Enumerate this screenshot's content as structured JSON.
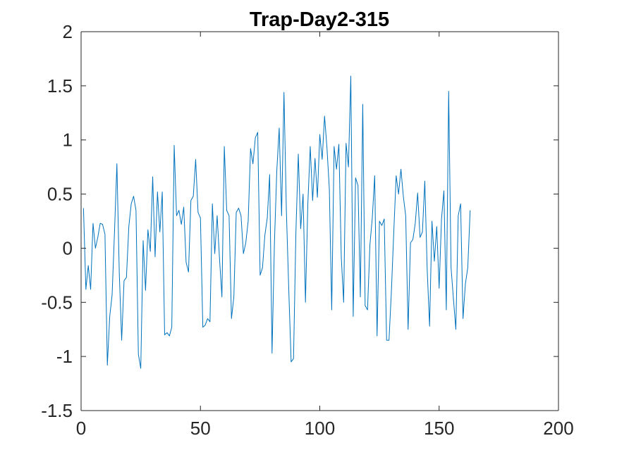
{
  "chart_data": {
    "type": "line",
    "title": "Trap-Day2-315",
    "xlabel": "",
    "ylabel": "",
    "xlim": [
      0,
      200
    ],
    "ylim": [
      -1.5,
      2
    ],
    "xticks": [
      0,
      50,
      100,
      150,
      200
    ],
    "yticks": [
      -1.5,
      -1,
      -0.5,
      0,
      0.5,
      1,
      1.5,
      2
    ],
    "xtick_labels": [
      "0",
      "50",
      "100",
      "150",
      "200"
    ],
    "ytick_labels": [
      "-1.5",
      "-1",
      "-0.5",
      "0",
      "0.5",
      "1",
      "1.5",
      "2"
    ],
    "grid": false,
    "legend": "none",
    "line_color": "#0072BD",
    "axis_color": "#262626",
    "series": [
      {
        "x_start": 1,
        "x_step": 1,
        "values": [
          0.37,
          -0.38,
          -0.16,
          -0.38,
          0.23,
          0.0,
          0.1,
          0.23,
          0.22,
          0.13,
          -1.08,
          -0.63,
          -0.43,
          0.15,
          0.78,
          -0.23,
          -0.85,
          -0.3,
          -0.27,
          0.2,
          0.41,
          0.48,
          0.35,
          -0.98,
          -1.11,
          0.07,
          -0.39,
          0.17,
          -0.03,
          0.66,
          -0.08,
          0.52,
          0.15,
          0.52,
          -0.8,
          -0.78,
          -0.81,
          -0.73,
          0.95,
          0.3,
          0.35,
          0.22,
          0.38,
          -0.13,
          -0.22,
          0.44,
          0.48,
          0.82,
          0.33,
          0.28,
          -0.73,
          -0.71,
          -0.65,
          -0.68,
          0.41,
          -0.05,
          0.3,
          -0.1,
          -0.45,
          0.94,
          0.35,
          0.3,
          -0.65,
          -0.45,
          0.33,
          0.37,
          0.3,
          -0.05,
          0.05,
          0.25,
          0.92,
          0.78,
          1.02,
          1.07,
          -0.25,
          -0.18,
          0.12,
          0.28,
          0.68,
          -0.97,
          0.05,
          0.72,
          1.11,
          0.3,
          1.44,
          0.35,
          -0.38,
          -1.05,
          -1.02,
          0.15,
          0.87,
          0.18,
          0.5,
          -0.5,
          0.41,
          0.94,
          0.44,
          0.83,
          0.47,
          1.05,
          0.82,
          1.22,
          0.93,
          0.55,
          -0.57,
          0.94,
          0.73,
          0.96,
          -0.08,
          -0.5,
          0.97,
          0.75,
          1.59,
          -0.63,
          0.65,
          0.58,
          -0.45,
          1.33,
          -0.53,
          -0.57,
          0.03,
          0.28,
          0.67,
          -0.81,
          0.25,
          0.21,
          0.27,
          -0.85,
          -0.85,
          -0.4,
          0.15,
          0.67,
          0.5,
          0.73,
          0.48,
          0.3,
          -0.75,
          0.05,
          0.08,
          0.23,
          0.51,
          0.1,
          0.15,
          0.62,
          -0.2,
          -0.72,
          0.25,
          -0.12,
          0.2,
          -0.37,
          0.27,
          0.53,
          -0.57,
          1.45,
          -0.18,
          -0.47,
          -0.75,
          0.3,
          0.41,
          -0.65,
          -0.33,
          -0.18,
          0.35
        ]
      }
    ]
  }
}
